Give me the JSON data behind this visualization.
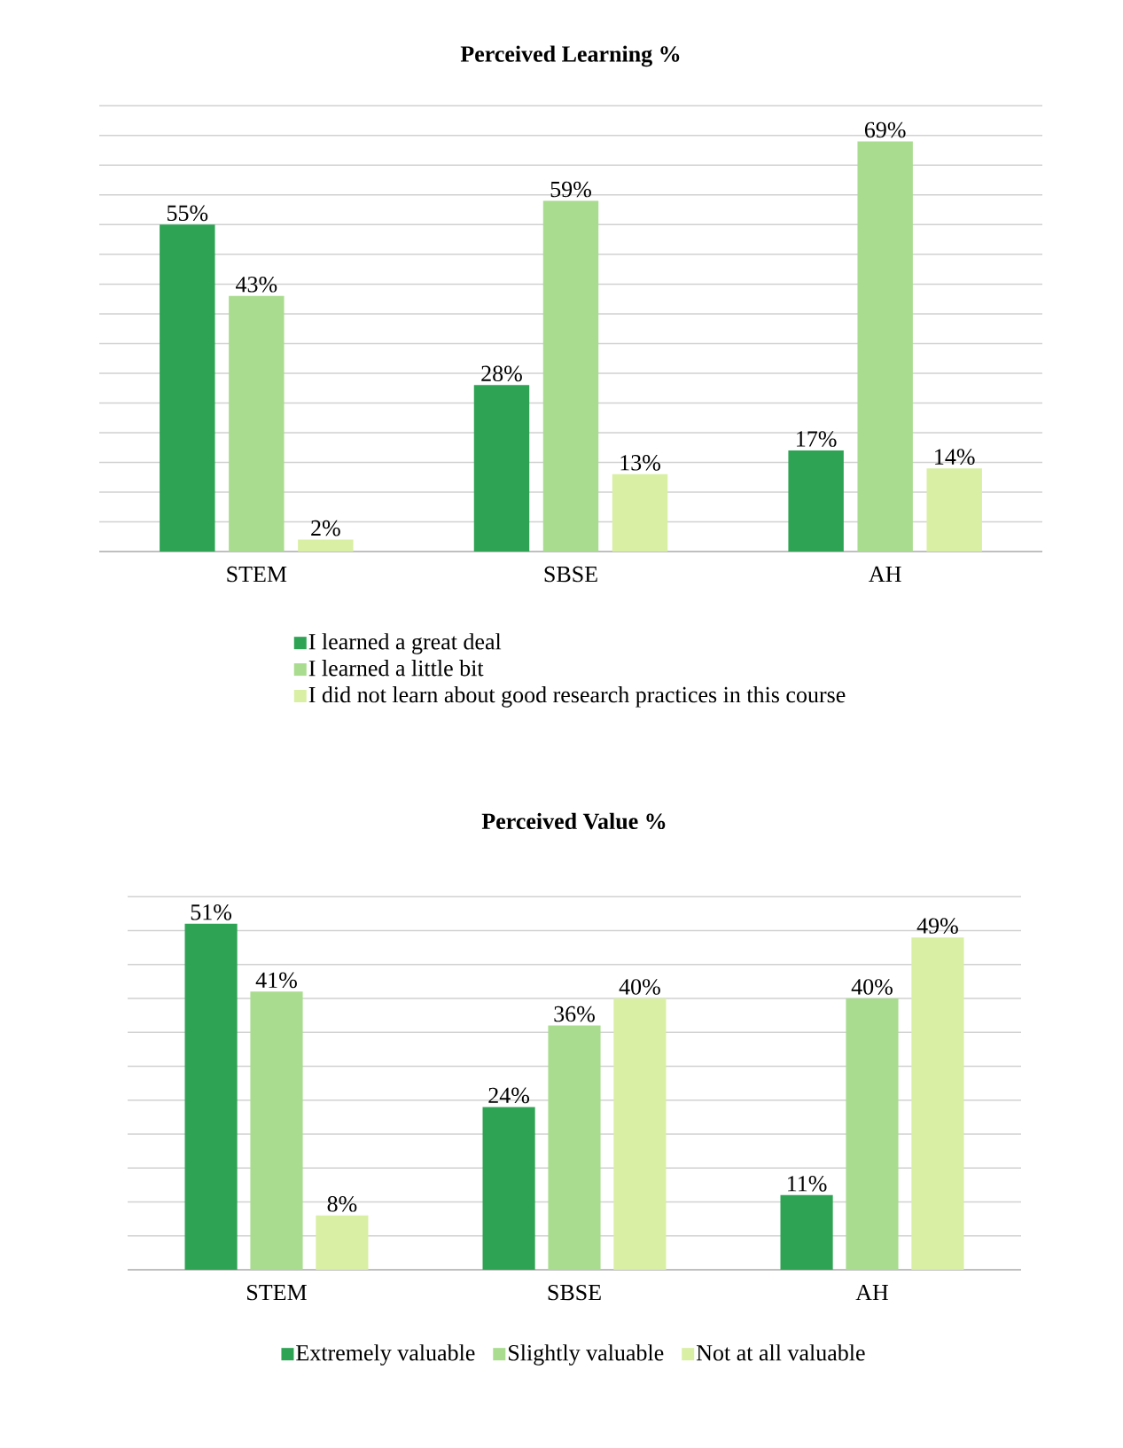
{
  "chart_data": [
    {
      "type": "bar",
      "title": "Perceived Learning %",
      "categories": [
        "STEM",
        "SBSE",
        "AH"
      ],
      "series": [
        {
          "name": "I learned a great deal",
          "color": "#2ea354",
          "values": [
            55,
            28,
            17
          ],
          "value_labels": [
            "55%",
            "28%",
            "17%"
          ]
        },
        {
          "name": "I learned a little bit",
          "color": "#a9dc8f",
          "values": [
            43,
            59,
            69
          ],
          "value_labels": [
            "43%",
            "59%",
            "69%"
          ]
        },
        {
          "name": "I did not learn about good research practices in this course",
          "color": "#d9efa4",
          "values": [
            2,
            13,
            14
          ],
          "value_labels": [
            "2%",
            "13%",
            "14%"
          ]
        }
      ],
      "tick_labels": "x",
      "grid": "y",
      "legend": "bottom"
    },
    {
      "type": "bar",
      "title": "Perceived Value %",
      "categories": [
        "STEM",
        "SBSE",
        "AH"
      ],
      "series": [
        {
          "name": "Extremely valuable",
          "color": "#2ea354",
          "values": [
            51,
            24,
            11
          ],
          "value_labels": [
            "51%",
            "24%",
            "11%"
          ]
        },
        {
          "name": "Slightly valuable",
          "color": "#a9dc8f",
          "values": [
            41,
            36,
            40
          ],
          "value_labels": [
            "41%",
            "36%",
            "40%"
          ]
        },
        {
          "name": "Not at all valuable",
          "color": "#d9efa4",
          "values": [
            8,
            40,
            49
          ],
          "value_labels": [
            "8%",
            "40%",
            "49%"
          ]
        }
      ],
      "tick_labels": "x",
      "grid": "y",
      "legend": "bottom"
    }
  ]
}
